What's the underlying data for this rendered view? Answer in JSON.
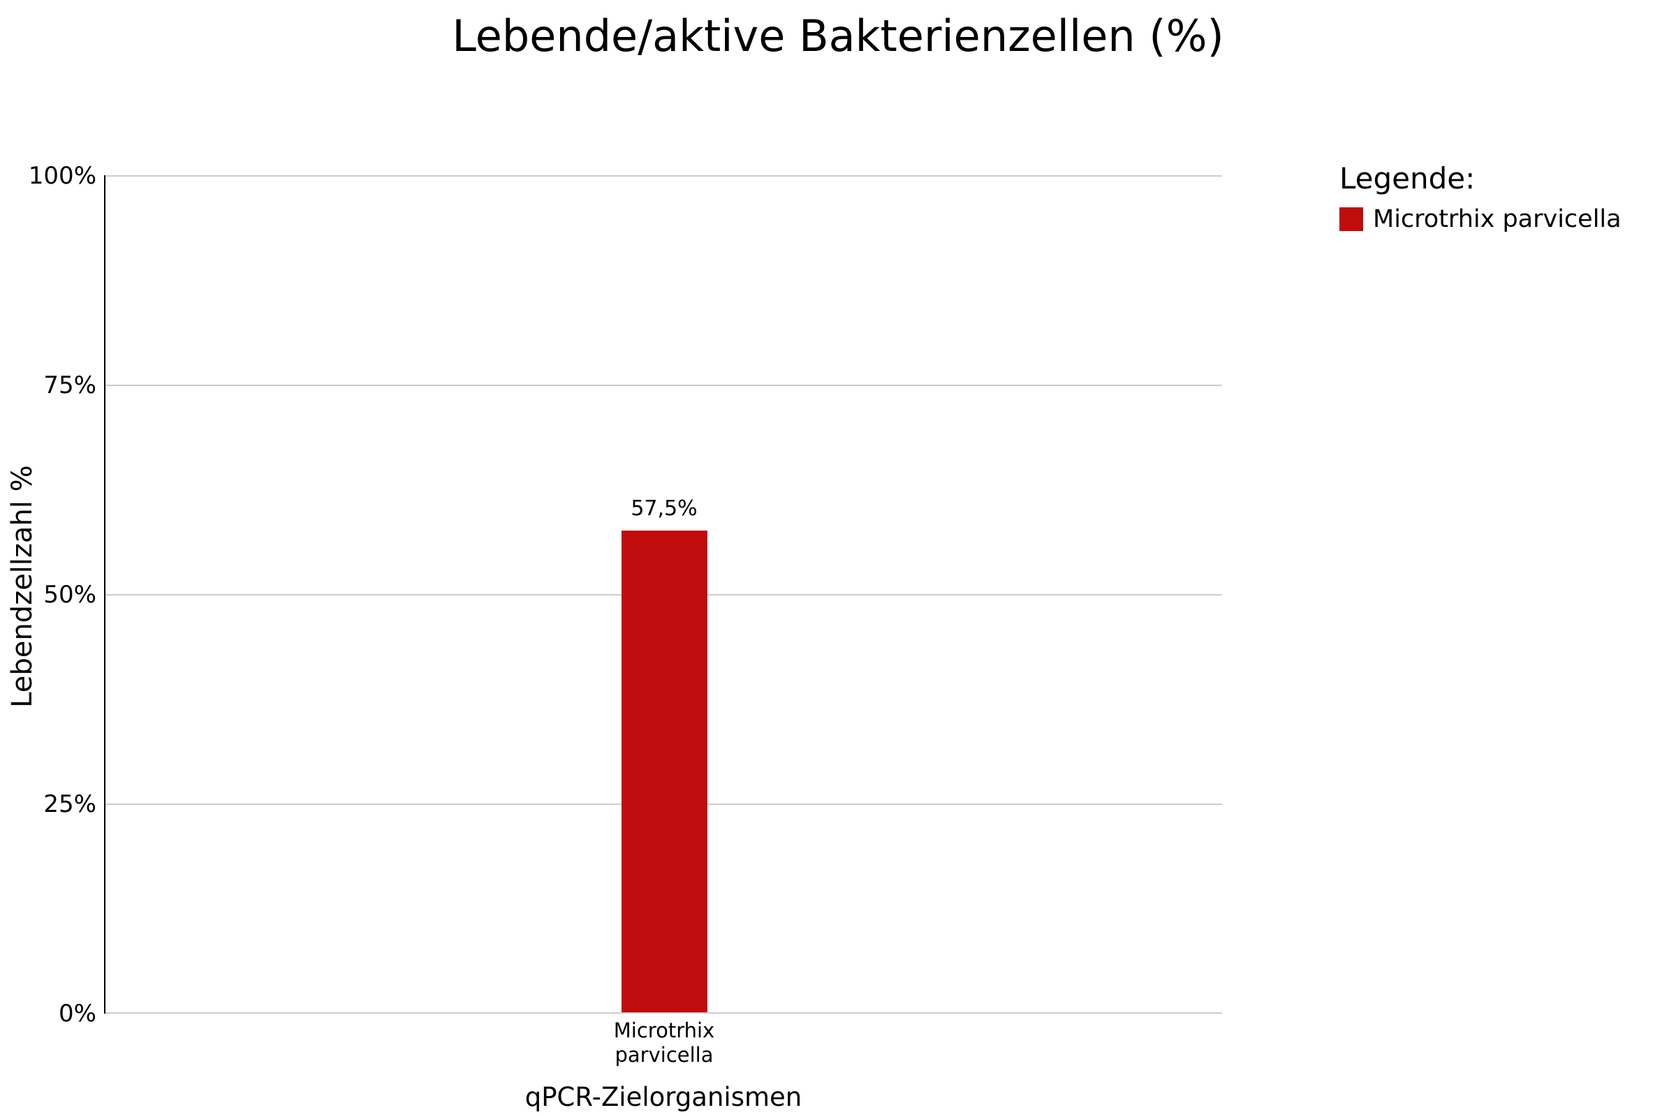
{
  "title": "Lebende/aktive Bakterienzellen (%)",
  "colors": {
    "bar": "#c00c0c",
    "gridline": "#cccccc",
    "axis": "#000000",
    "background": "#ffffff"
  },
  "axes": {
    "y_label": "Lebendzellzahl %",
    "x_label": "qPCR-Zielorganismen"
  },
  "legend": {
    "heading": "Legende:",
    "items": [
      {
        "label": "Microtrhix parvicella",
        "color": "#c00c0c"
      }
    ]
  },
  "chart_data": {
    "type": "bar",
    "title": "Lebende/aktive Bakterienzellen (%)",
    "xlabel": "qPCR-Zielorganismen",
    "ylabel": "Lebendzellzahl %",
    "categories": [
      "Microtrhix parvicella"
    ],
    "category_tick_lines": [
      [
        "Microtrhix",
        "parvicella"
      ]
    ],
    "values": [
      57.5
    ],
    "value_labels": [
      "57,5%"
    ],
    "series": [
      {
        "name": "Microtrhix parvicella",
        "values": [
          57.5
        ],
        "color": "#c00c0c"
      }
    ],
    "ylim": [
      0,
      100
    ],
    "yticks": [
      0,
      25,
      50,
      75,
      100
    ],
    "ytick_labels": [
      "0%",
      "25%",
      "50%",
      "75%",
      "100%"
    ],
    "grid": "horizontal",
    "legend_position": "top-right"
  }
}
